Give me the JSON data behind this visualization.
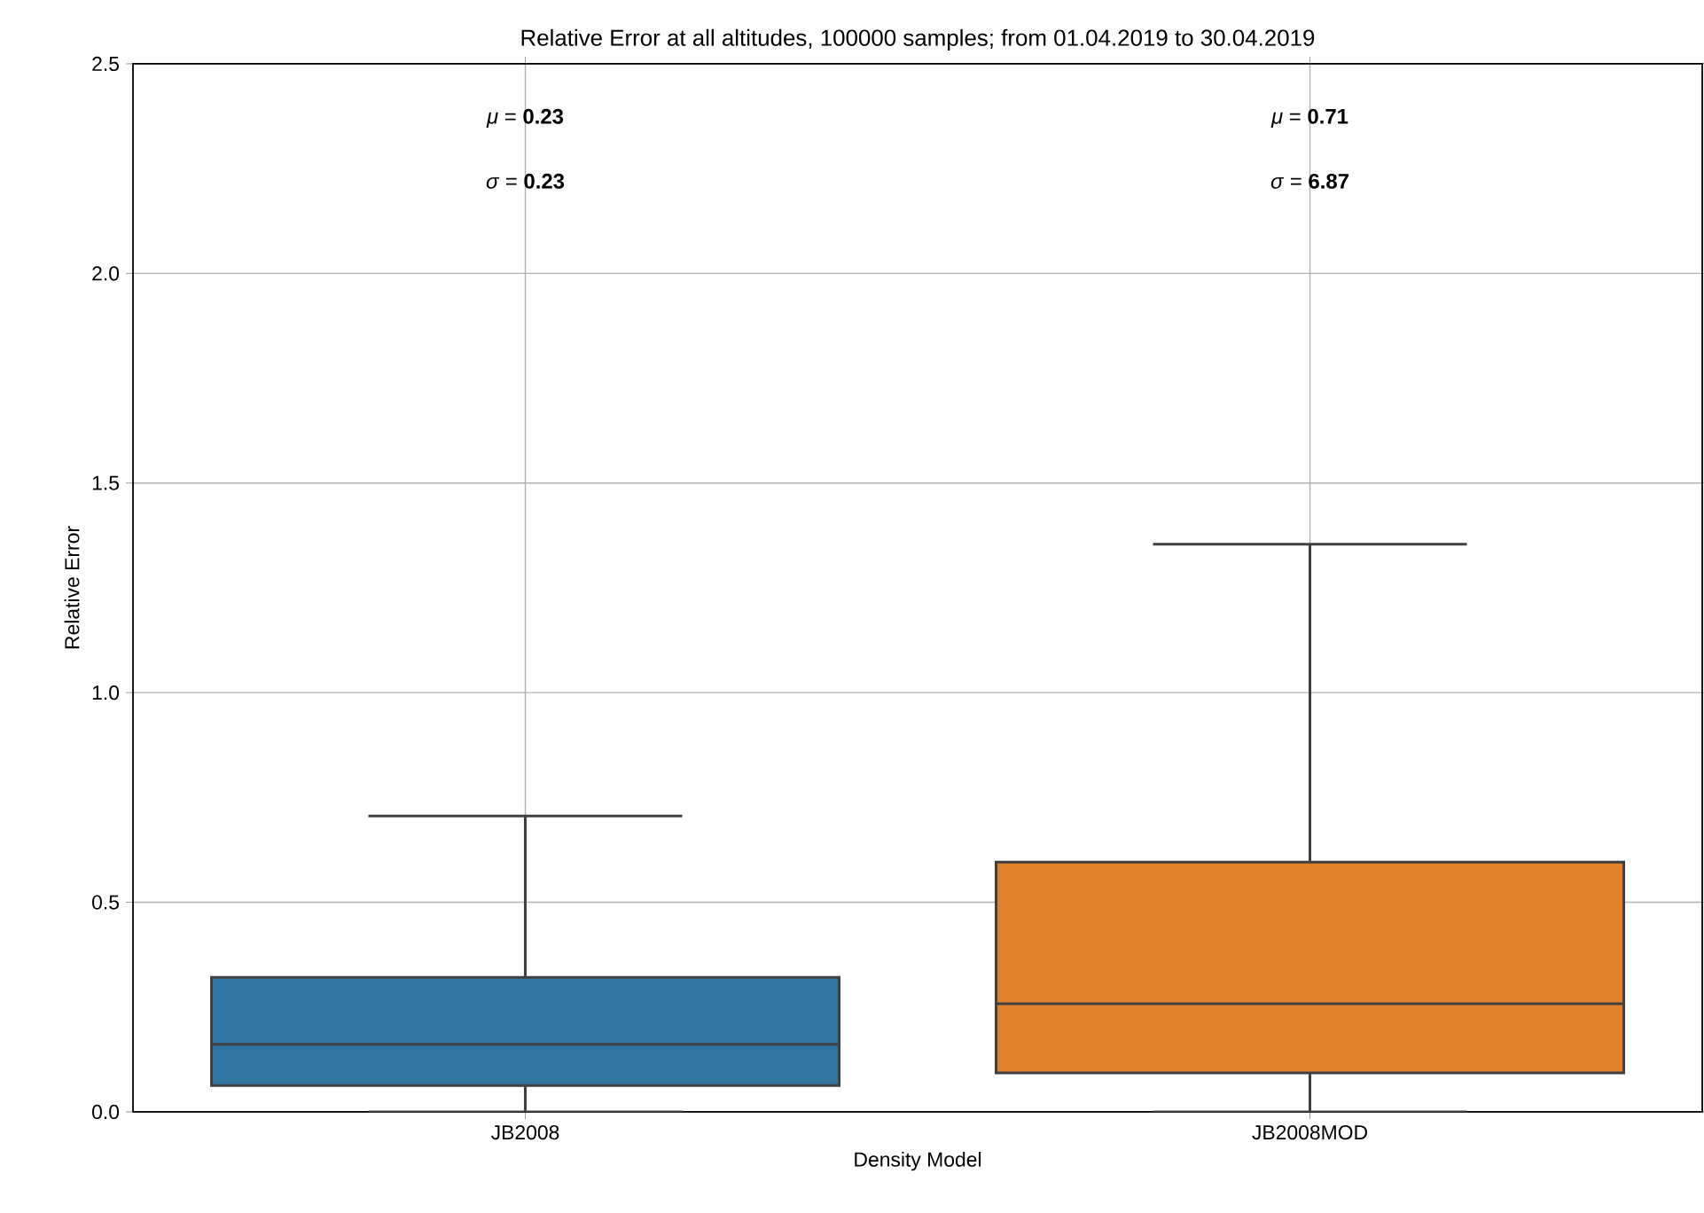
{
  "chart_data": {
    "type": "box",
    "title": "Relative Error at all altitudes, 100000 samples; from 01.04.2019 to 30.04.2019",
    "xlabel": "Density Model",
    "ylabel": "Relative Error",
    "categories": [
      "JB2008",
      "JB2008MOD"
    ],
    "colors": [
      "#3274a1",
      "#e1812c"
    ],
    "boxes": [
      {
        "low": 0,
        "q1": 0.063,
        "median": 0.161,
        "q3": 0.321,
        "high": 0.706
      },
      {
        "low": 0,
        "q1": 0.093,
        "median": 0.258,
        "q3": 0.596,
        "high": 1.354
      }
    ],
    "ylim": [
      0,
      2.5
    ],
    "yticks": [
      {
        "value": 0,
        "label": "0.0"
      },
      {
        "value": 0.5,
        "label": "0.5"
      },
      {
        "value": 1,
        "label": "1.0"
      },
      {
        "value": 1.5,
        "label": "1.5"
      },
      {
        "value": 2,
        "label": "2.0"
      },
      {
        "value": 2.5,
        "label": "2.5"
      }
    ],
    "grid": true,
    "annotations": [
      "*μ* = **0.23**",
      "*σ* = **0.23**",
      "*μ* = **0.71**",
      "*σ* = **6.87**"
    ]
  }
}
